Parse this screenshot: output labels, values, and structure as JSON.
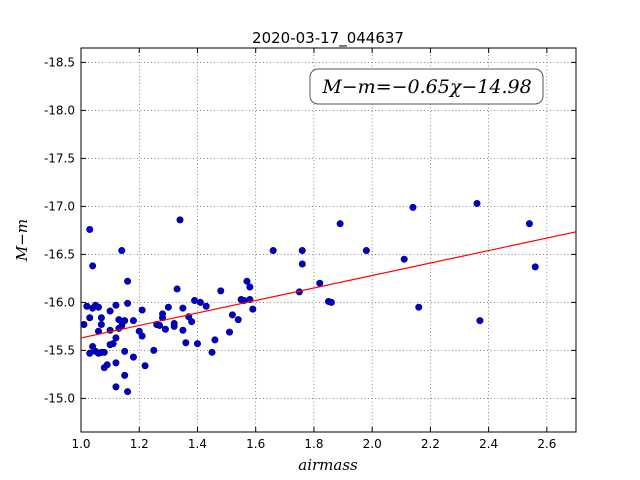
{
  "chart_data": {
    "type": "scatter",
    "title": "2020-03-17_044637",
    "xlabel": "airmass",
    "ylabel": "M−m",
    "xlim": [
      1.0,
      2.7
    ],
    "ylim": [
      -18.65,
      -14.65
    ],
    "y_inverted": true,
    "grid": true,
    "xticks": [
      "1.0",
      "1.2",
      "1.4",
      "1.6",
      "1.8",
      "2.0",
      "2.2",
      "2.4",
      "2.6"
    ],
    "yticks": [
      "-15.0",
      "-15.5",
      "-16.0",
      "-16.5",
      "-17.0",
      "-17.5",
      "-18.0",
      "-18.5"
    ],
    "annotation": "M−m=−0.65χ−14.98",
    "fit_line": {
      "slope": -0.65,
      "intercept": -14.98,
      "color": "#ff0000"
    },
    "marker_color": "#0000cc",
    "points": [
      [
        1.01,
        -15.77
      ],
      [
        1.02,
        -15.96
      ],
      [
        1.03,
        -15.84
      ],
      [
        1.03,
        -15.47
      ],
      [
        1.03,
        -16.76
      ],
      [
        1.04,
        -15.94
      ],
      [
        1.04,
        -16.38
      ],
      [
        1.04,
        -15.54
      ],
      [
        1.05,
        -15.49
      ],
      [
        1.05,
        -15.97
      ],
      [
        1.06,
        -15.95
      ],
      [
        1.06,
        -15.7
      ],
      [
        1.06,
        -15.47
      ],
      [
        1.07,
        -15.84
      ],
      [
        1.07,
        -15.77
      ],
      [
        1.07,
        -15.48
      ],
      [
        1.08,
        -15.32
      ],
      [
        1.08,
        -15.48
      ],
      [
        1.09,
        -15.35
      ],
      [
        1.1,
        -15.56
      ],
      [
        1.1,
        -15.71
      ],
      [
        1.1,
        -15.91
      ],
      [
        1.11,
        -15.57
      ],
      [
        1.12,
        -15.12
      ],
      [
        1.12,
        -15.37
      ],
      [
        1.12,
        -15.63
      ],
      [
        1.12,
        -15.97
      ],
      [
        1.13,
        -15.73
      ],
      [
        1.13,
        -15.82
      ],
      [
        1.14,
        -16.54
      ],
      [
        1.14,
        -15.76
      ],
      [
        1.15,
        -15.24
      ],
      [
        1.15,
        -15.49
      ],
      [
        1.15,
        -15.81
      ],
      [
        1.16,
        -15.07
      ],
      [
        1.16,
        -15.99
      ],
      [
        1.16,
        -16.22
      ],
      [
        1.18,
        -15.43
      ],
      [
        1.18,
        -15.81
      ],
      [
        1.2,
        -15.7
      ],
      [
        1.21,
        -15.65
      ],
      [
        1.21,
        -15.92
      ],
      [
        1.22,
        -15.34
      ],
      [
        1.25,
        -15.5
      ],
      [
        1.26,
        -15.77
      ],
      [
        1.27,
        -15.76
      ],
      [
        1.28,
        -15.84
      ],
      [
        1.28,
        -15.88
      ],
      [
        1.29,
        -15.72
      ],
      [
        1.3,
        -15.95
      ],
      [
        1.32,
        -15.75
      ],
      [
        1.32,
        -15.78
      ],
      [
        1.33,
        -16.14
      ],
      [
        1.34,
        -16.86
      ],
      [
        1.35,
        -15.94
      ],
      [
        1.35,
        -15.71
      ],
      [
        1.36,
        -15.58
      ],
      [
        1.37,
        -15.85
      ],
      [
        1.38,
        -15.8
      ],
      [
        1.39,
        -16.02
      ],
      [
        1.4,
        -15.57
      ],
      [
        1.41,
        -16.0
      ],
      [
        1.43,
        -15.96
      ],
      [
        1.45,
        -15.48
      ],
      [
        1.46,
        -15.61
      ],
      [
        1.48,
        -16.12
      ],
      [
        1.51,
        -15.69
      ],
      [
        1.52,
        -15.87
      ],
      [
        1.54,
        -15.82
      ],
      [
        1.55,
        -16.03
      ],
      [
        1.56,
        -16.02
      ],
      [
        1.57,
        -16.22
      ],
      [
        1.58,
        -16.03
      ],
      [
        1.58,
        -16.16
      ],
      [
        1.59,
        -15.93
      ],
      [
        1.66,
        -16.54
      ],
      [
        1.75,
        -16.11
      ],
      [
        1.76,
        -16.4
      ],
      [
        1.76,
        -16.54
      ],
      [
        1.82,
        -16.2
      ],
      [
        1.85,
        -16.01
      ],
      [
        1.86,
        -16.0
      ],
      [
        1.89,
        -16.82
      ],
      [
        1.98,
        -16.54
      ],
      [
        2.11,
        -16.45
      ],
      [
        2.14,
        -16.99
      ],
      [
        2.16,
        -15.95
      ],
      [
        2.36,
        -17.03
      ],
      [
        2.37,
        -15.81
      ],
      [
        2.54,
        -16.82
      ],
      [
        2.56,
        -16.37
      ]
    ]
  }
}
